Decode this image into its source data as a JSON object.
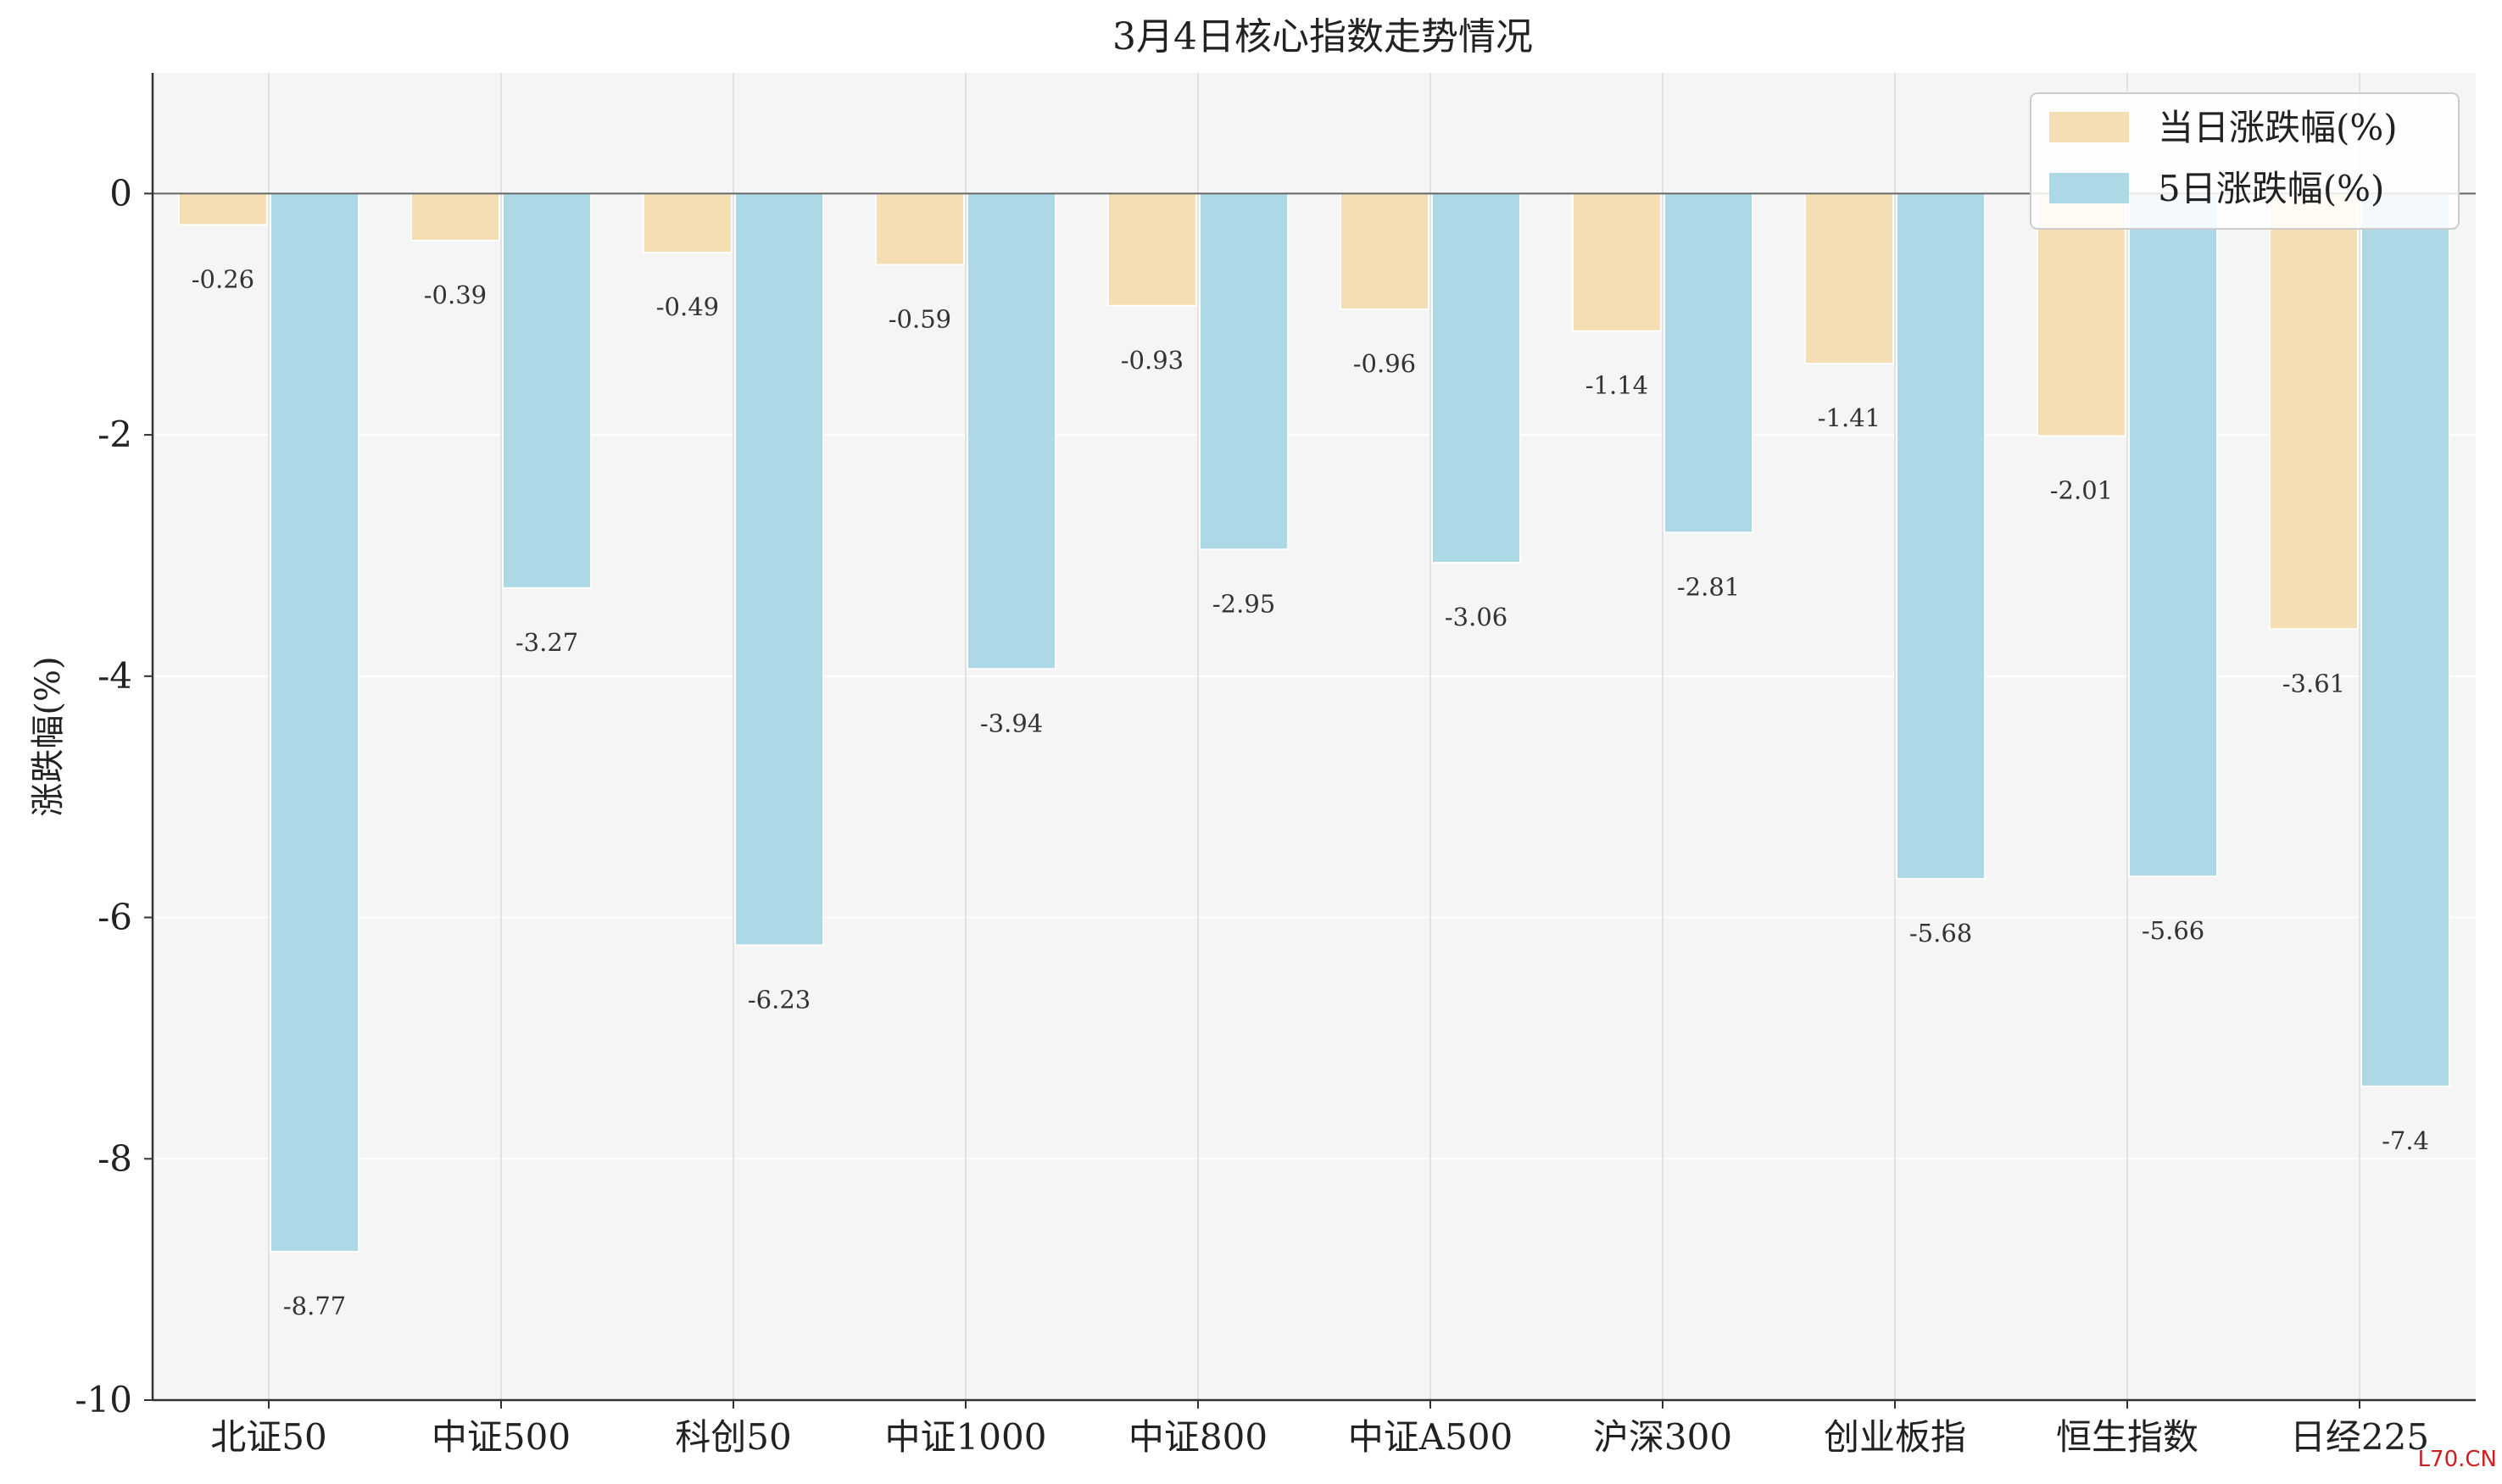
{
  "chart_data": {
    "type": "bar",
    "title": "3月4日核心指数走势情况",
    "ylabel": "涨跌幅(%)",
    "xlabel": "",
    "ylim": [
      -10,
      1
    ],
    "yticks": [
      0,
      -2,
      -4,
      -6,
      -8,
      -10
    ],
    "grid": true,
    "legend_position": "top-right",
    "categories": [
      "北证50",
      "中证500",
      "科创50",
      "中证1000",
      "中证800",
      "中证A500",
      "沪深300",
      "创业板指",
      "恒生指数",
      "日经225"
    ],
    "series": [
      {
        "name": "当日涨跌幅(%)",
        "color": "#f5deb3",
        "values": [
          -0.26,
          -0.39,
          -0.49,
          -0.59,
          -0.93,
          -0.96,
          -1.14,
          -1.41,
          -2.01,
          -3.61
        ]
      },
      {
        "name": "5日涨跌幅(%)",
        "color": "#add8e6",
        "values": [
          -8.77,
          -3.27,
          -6.23,
          -3.94,
          -2.95,
          -3.06,
          -2.81,
          -5.68,
          -5.66,
          -7.4
        ]
      }
    ],
    "background_color": "#f5f5f5"
  },
  "watermark": "L70.CN"
}
